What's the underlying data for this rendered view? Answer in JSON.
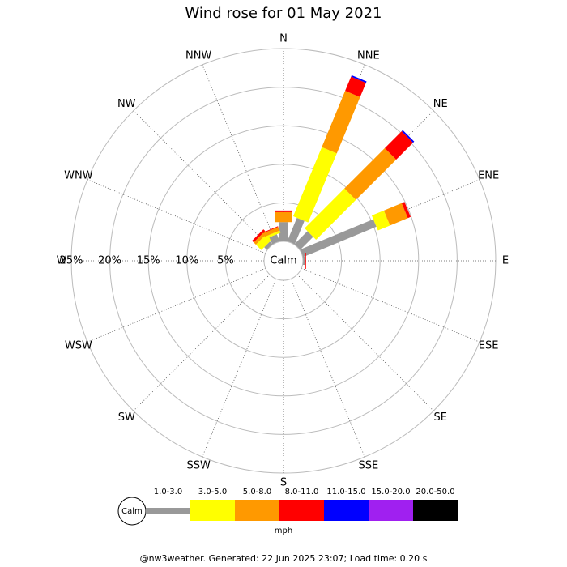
{
  "chart_data": {
    "type": "windrose",
    "title": "Wind rose for 01 May 2021",
    "categories": [
      "N",
      "NNE",
      "NE",
      "ENE",
      "E",
      "ESE",
      "SE",
      "SSE",
      "S",
      "SSW",
      "SW",
      "WSW",
      "W",
      "WNW",
      "NW",
      "NNW"
    ],
    "series": [
      {
        "name": "1.0-3.0",
        "color": "#999999",
        "values": [
          2.5,
          3.3,
          2.4,
          10.3,
          0.3,
          0,
          0,
          0,
          0,
          0,
          0,
          0,
          0,
          0,
          0.5,
          1.0
        ]
      },
      {
        "name": "3.0-5.0",
        "color": "#ffff00",
        "values": [
          0,
          9.7,
          7.3,
          1.7,
          0,
          0,
          0,
          0,
          0,
          0,
          0,
          0,
          0,
          0,
          1.0,
          0.3
        ]
      },
      {
        "name": "5.0-8.0",
        "color": "#ff9900",
        "values": [
          1.3,
          7.9,
          7.4,
          2.5,
          0,
          0,
          0,
          0,
          0,
          0,
          0,
          0,
          0,
          0,
          0.4,
          0.5
        ]
      },
      {
        "name": "8.0-11.0",
        "color": "#ff0000",
        "values": [
          0.2,
          2.0,
          3.1,
          0.4,
          0.1,
          0,
          0,
          0,
          0,
          0,
          0,
          0,
          0,
          0,
          0.3,
          0.1
        ]
      },
      {
        "name": "11.0-15.0",
        "color": "#0000ff",
        "values": [
          0,
          0.2,
          0.2,
          0,
          0,
          0,
          0,
          0,
          0,
          0,
          0,
          0,
          0,
          0,
          0,
          0
        ]
      },
      {
        "name": "15.0-20.0",
        "color": "#a020f0",
        "values": [
          0,
          0,
          0,
          0,
          0,
          0,
          0,
          0,
          0,
          0,
          0,
          0,
          0,
          0,
          0,
          0
        ]
      },
      {
        "name": "20.0-50.0",
        "color": "#000000",
        "values": [
          0,
          0,
          0,
          0,
          0,
          0,
          0,
          0,
          0,
          0,
          0,
          0,
          0,
          0,
          0,
          0
        ]
      }
    ],
    "rlim": [
      0,
      25
    ],
    "rticks": [
      {
        "value": 5,
        "label": "5%"
      },
      {
        "value": 10,
        "label": "10%"
      },
      {
        "value": 15,
        "label": "15%"
      },
      {
        "value": 20,
        "label": "20%"
      },
      {
        "value": 25,
        "label": "25%"
      }
    ],
    "calm_label": "Calm",
    "units_label": "mph"
  },
  "footer": "@nw3weather. Generated: 22 Jun 2025 23:07; Load time: 0.20 s"
}
